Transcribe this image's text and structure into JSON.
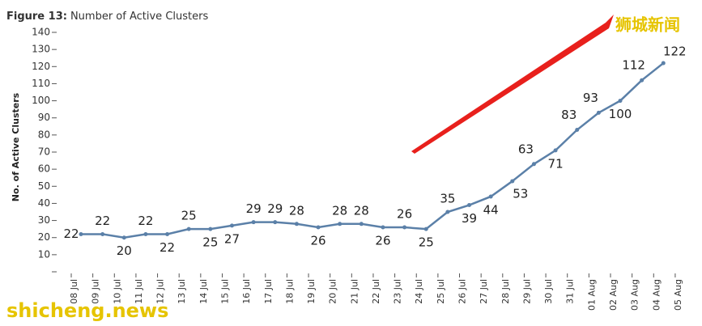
{
  "chart_data": {
    "type": "line",
    "figure_label": "Figure 13:",
    "title": "Number of Active Clusters",
    "y_label": "No. of Active Clusters",
    "categories": [
      "08 Jul",
      "09 Jul",
      "10 Jul",
      "11 Jul",
      "12 Jul",
      "13 Jul",
      "14 Jul",
      "15 Jul",
      "16 Jul",
      "17 Jul",
      "18 Jul",
      "19 Jul",
      "20 Jul",
      "21 Jul",
      "22 Jul",
      "23 Jul",
      "24 Jul",
      "25 Jul",
      "26 Jul",
      "27 Jul",
      "28 Jul",
      "29 Jul",
      "30 Jul",
      "31 Jul",
      "01 Aug",
      "02 Aug",
      "03 Aug",
      "04 Aug",
      "05 Aug"
    ],
    "series": [
      {
        "name": "Active Clusters",
        "color": "#5b80a8",
        "values": [
          22,
          22,
          20,
          22,
          22,
          25,
          25,
          27,
          29,
          29,
          28,
          26,
          28,
          28,
          26,
          26,
          25,
          35,
          39,
          44,
          53,
          63,
          71,
          83,
          93,
          100,
          112,
          122,
          null
        ]
      }
    ],
    "ylim": [
      0,
      140
    ],
    "yticks": [
      10,
      20,
      30,
      40,
      50,
      60,
      70,
      80,
      90,
      100,
      110,
      120,
      130,
      140
    ],
    "watermark_cn": "狮城新闻",
    "watermark_en": "shicheng.news"
  }
}
